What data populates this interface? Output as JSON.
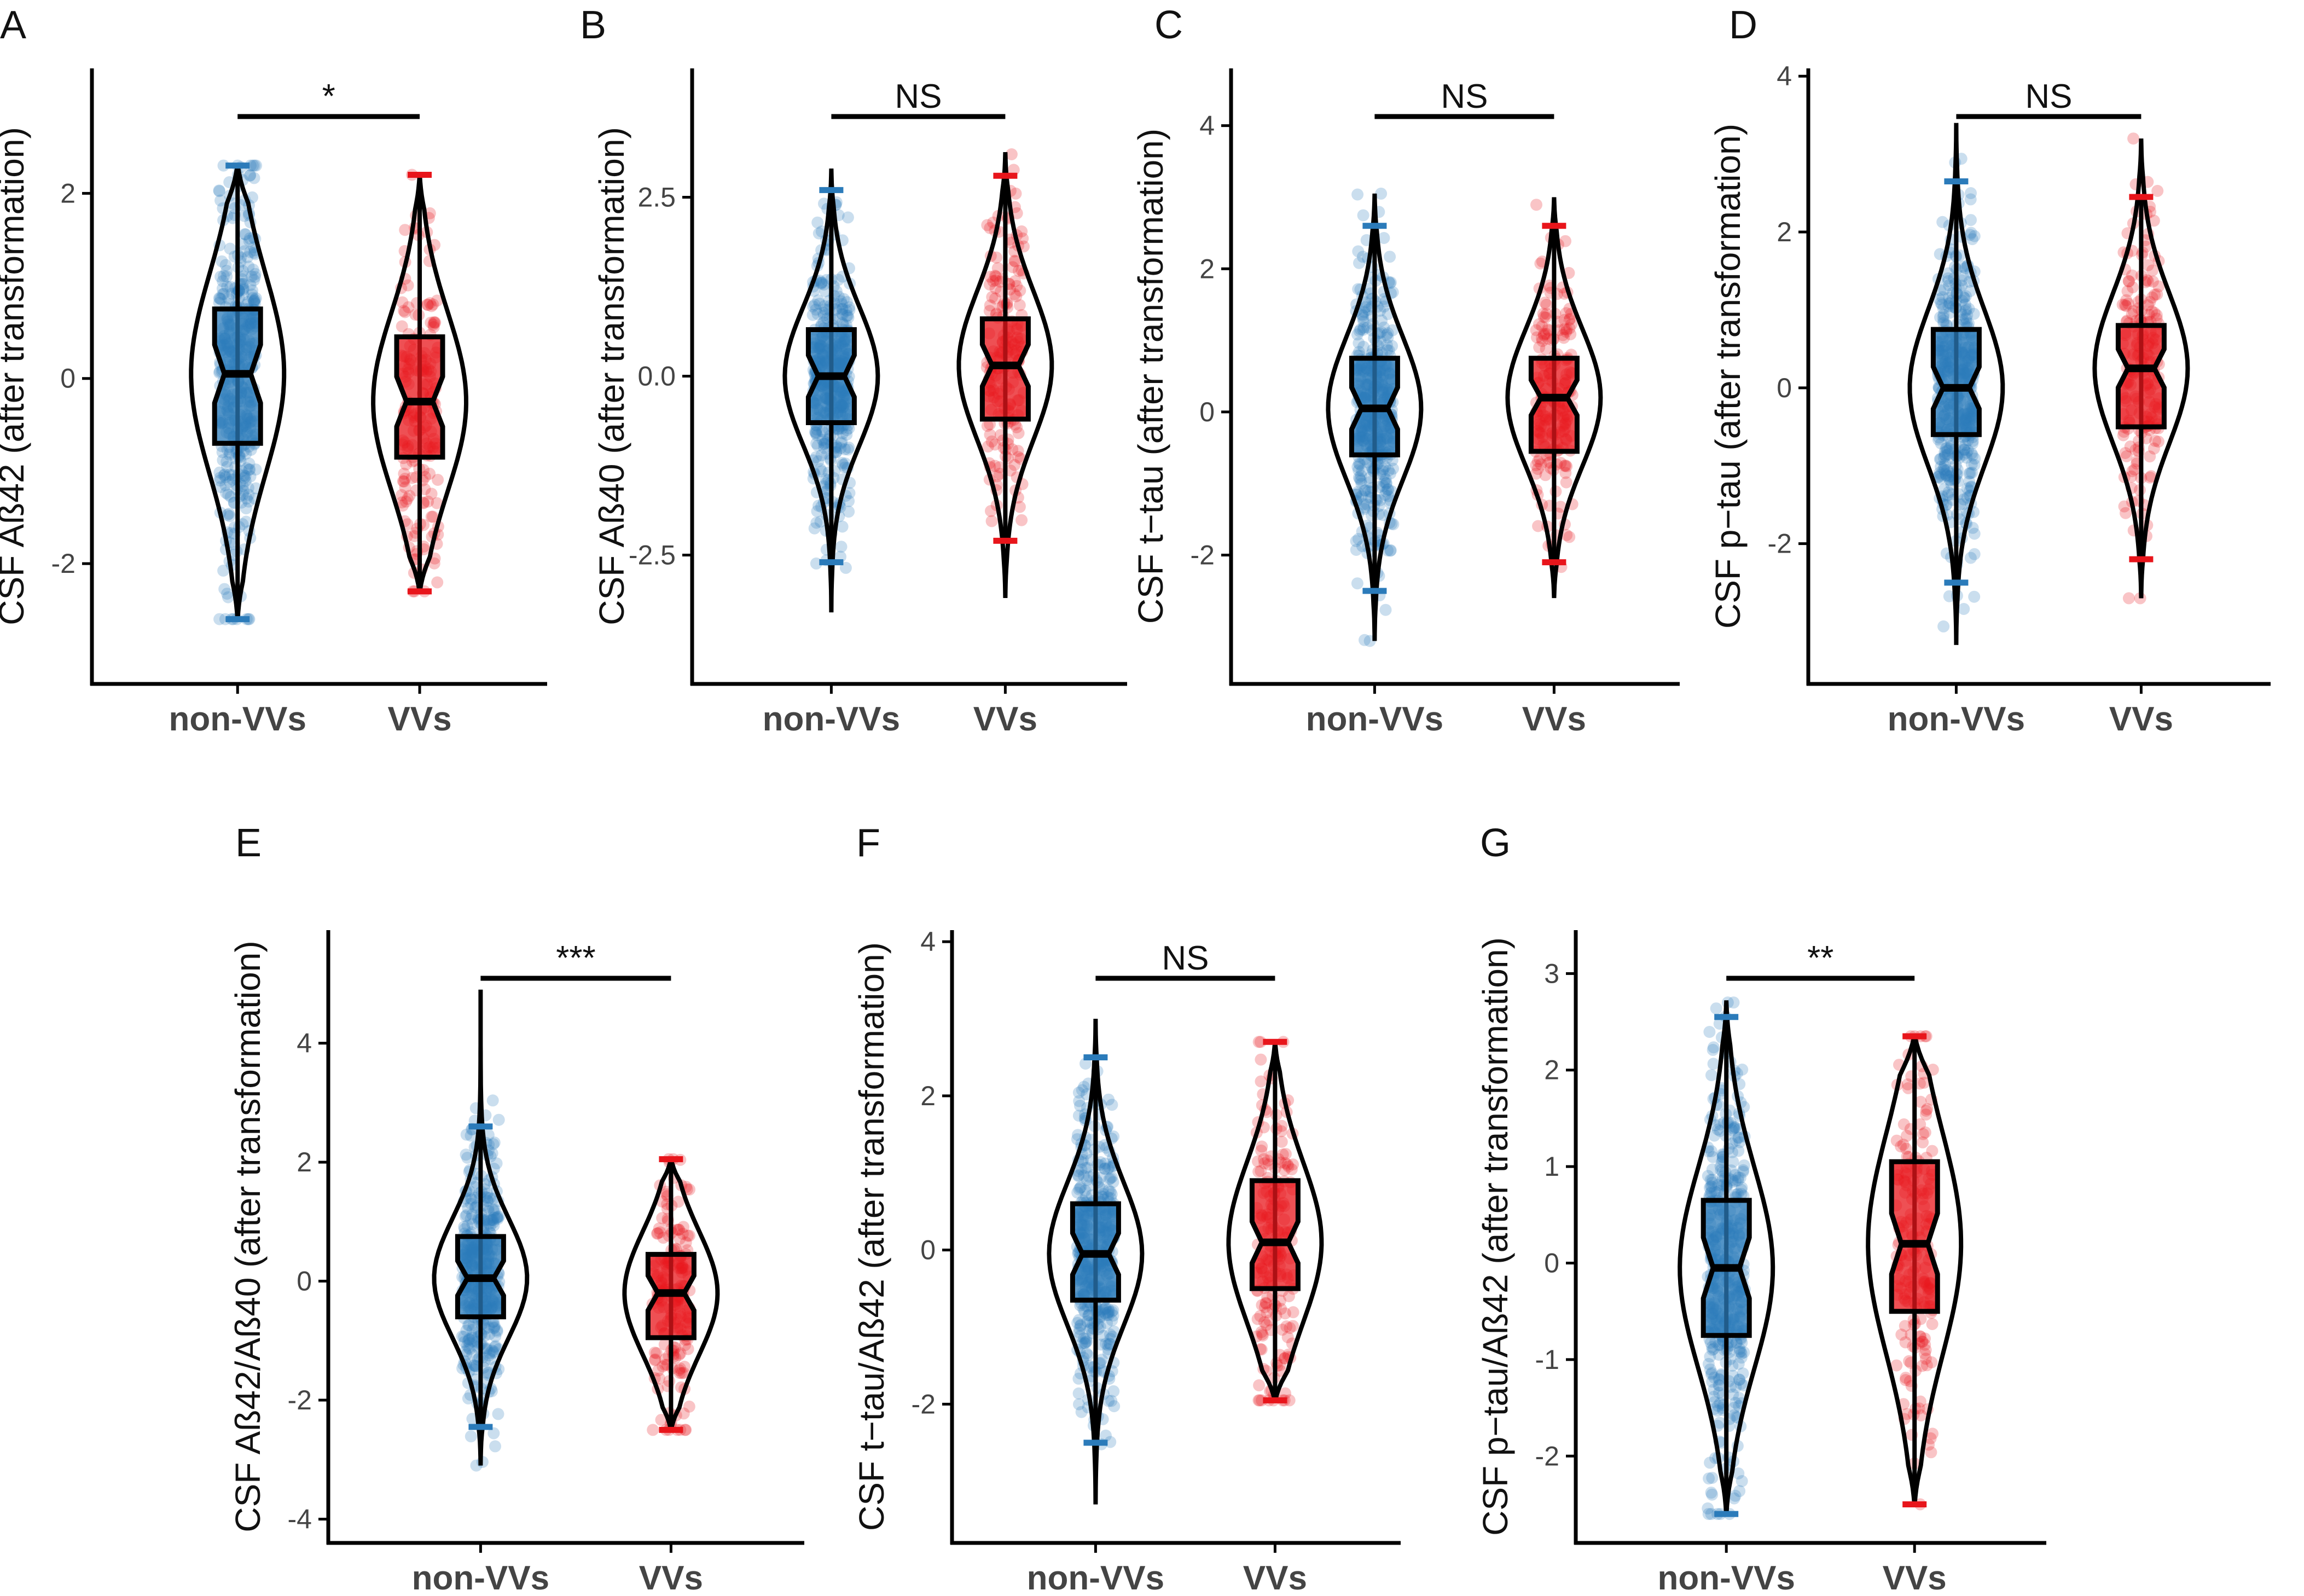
{
  "figure": {
    "categories": [
      "non-VVs",
      "VVs"
    ],
    "colors": {
      "nonVVs": "#2b7bba",
      "VVs": "#e8151b",
      "ink": "#000000"
    },
    "panels": [
      {
        "label": "A",
        "ylabel": "CSF Aß42 (after transformation)",
        "ylim": [
          -3.3,
          3.35
        ],
        "yticks": [
          "2",
          "0",
          "-2"
        ],
        "signif": "*",
        "groups": [
          {
            "name": "non-VVs",
            "min": -2.6,
            "q1": -0.7,
            "median": 0.05,
            "q3": 0.75,
            "max": 2.3,
            "whisk_lo": -2.6,
            "whisk_hi": 2.3
          },
          {
            "name": "VVs",
            "min": -2.3,
            "q1": -0.85,
            "median": -0.25,
            "q3": 0.45,
            "max": 2.2,
            "whisk_lo": -2.3,
            "whisk_hi": 2.2
          }
        ]
      },
      {
        "label": "B",
        "ylabel": "CSF Aß40 (after transformation)",
        "ylim": [
          -4.3,
          4.3
        ],
        "yticks": [
          "2.5",
          "0.0",
          "-2.5"
        ],
        "signif": "NS",
        "groups": [
          {
            "name": "non-VVs",
            "min": -3.3,
            "q1": -0.65,
            "median": 0.0,
            "q3": 0.65,
            "max": 2.9,
            "whisk_lo": -2.6,
            "whisk_hi": 2.6
          },
          {
            "name": "VVs",
            "min": -3.1,
            "q1": -0.6,
            "median": 0.15,
            "q3": 0.8,
            "max": 3.1,
            "whisk_lo": -2.3,
            "whisk_hi": 2.8
          }
        ]
      },
      {
        "label": "C",
        "ylabel": "CSF t−tau (after transformation)",
        "ylim": [
          -3.8,
          4.8
        ],
        "yticks": [
          "4",
          "2",
          "0",
          "-2"
        ],
        "signif": "NS",
        "groups": [
          {
            "name": "non-VVs",
            "min": -3.2,
            "q1": -0.6,
            "median": 0.05,
            "q3": 0.75,
            "max": 3.05,
            "whisk_lo": -2.5,
            "whisk_hi": 2.6
          },
          {
            "name": "VVs",
            "min": -2.6,
            "q1": -0.55,
            "median": 0.2,
            "q3": 0.75,
            "max": 3.0,
            "whisk_lo": -2.1,
            "whisk_hi": 2.6
          }
        ]
      },
      {
        "label": "D",
        "ylabel": "CSF p−tau (after transformation)",
        "ylim": [
          -3.8,
          4.1
        ],
        "yticks": [
          "4",
          "2",
          "0",
          "-2"
        ],
        "signif": "NS",
        "groups": [
          {
            "name": "non-VVs",
            "min": -3.3,
            "q1": -0.6,
            "median": 0.0,
            "q3": 0.75,
            "max": 3.4,
            "whisk_lo": -2.5,
            "whisk_hi": 2.65
          },
          {
            "name": "VVs",
            "min": -2.7,
            "q1": -0.5,
            "median": 0.25,
            "q3": 0.8,
            "max": 3.2,
            "whisk_lo": -2.2,
            "whisk_hi": 2.45
          }
        ]
      },
      {
        "label": "E",
        "ylabel": "CSF Aß42/Aß40 (after transformation)",
        "ylim": [
          -4.4,
          5.9
        ],
        "yticks": [
          "4",
          "2",
          "0",
          "-2",
          "-4"
        ],
        "signif": "***",
        "groups": [
          {
            "name": "non-VVs",
            "min": -3.1,
            "q1": -0.6,
            "median": 0.05,
            "q3": 0.75,
            "max": 4.9,
            "whisk_lo": -2.45,
            "whisk_hi": 2.6
          },
          {
            "name": "VVs",
            "min": -2.5,
            "q1": -0.95,
            "median": -0.2,
            "q3": 0.45,
            "max": 2.05,
            "whisk_lo": -2.5,
            "whisk_hi": 2.05
          }
        ]
      },
      {
        "label": "F",
        "ylabel": "CSF t−tau/Aß42 (after transformation)",
        "ylim": [
          -3.8,
          4.15
        ],
        "yticks": [
          "4",
          "2",
          "0",
          "-2"
        ],
        "signif": "NS",
        "groups": [
          {
            "name": "non-VVs",
            "min": -3.3,
            "q1": -0.65,
            "median": -0.05,
            "q3": 0.6,
            "max": 3.0,
            "whisk_lo": -2.5,
            "whisk_hi": 2.5
          },
          {
            "name": "VVs",
            "min": -1.95,
            "q1": -0.5,
            "median": 0.1,
            "q3": 0.9,
            "max": 2.7,
            "whisk_lo": -1.95,
            "whisk_hi": 2.7
          }
        ]
      },
      {
        "label": "G",
        "ylabel": "CSF p−tau/Aß42 (after transformation)",
        "ylim": [
          -2.9,
          3.45
        ],
        "yticks": [
          "3",
          "2",
          "1",
          "0",
          "-1",
          "-2"
        ],
        "signif": "**",
        "groups": [
          {
            "name": "non-VVs",
            "min": -2.6,
            "q1": -0.75,
            "median": -0.05,
            "q3": 0.65,
            "max": 2.7,
            "whisk_lo": -2.6,
            "whisk_hi": 2.55
          },
          {
            "name": "VVs",
            "min": -2.5,
            "q1": -0.5,
            "median": 0.2,
            "q3": 1.05,
            "max": 2.35,
            "whisk_lo": -2.5,
            "whisk_hi": 2.35
          }
        ]
      }
    ]
  },
  "chart_data": [
    {
      "type": "violin+box",
      "panel": "A",
      "ylabel": "CSF Aß42 (after transformation)",
      "categories": [
        "non-VVs",
        "VVs"
      ],
      "significance": "*",
      "series": [
        {
          "name": "non-VVs",
          "q1": -0.7,
          "median": 0.05,
          "q3": 0.75,
          "whisker_low": -2.6,
          "whisker_high": 2.3
        },
        {
          "name": "VVs",
          "q1": -0.85,
          "median": -0.25,
          "q3": 0.45,
          "whisker_low": -2.3,
          "whisker_high": 2.2
        }
      ]
    },
    {
      "type": "violin+box",
      "panel": "B",
      "ylabel": "CSF Aß40 (after transformation)",
      "categories": [
        "non-VVs",
        "VVs"
      ],
      "significance": "NS",
      "series": [
        {
          "name": "non-VVs",
          "q1": -0.65,
          "median": 0.0,
          "q3": 0.65,
          "whisker_low": -2.6,
          "whisker_high": 2.6
        },
        {
          "name": "VVs",
          "q1": -0.6,
          "median": 0.15,
          "q3": 0.8,
          "whisker_low": -2.3,
          "whisker_high": 2.8
        }
      ]
    },
    {
      "type": "violin+box",
      "panel": "C",
      "ylabel": "CSF t−tau (after transformation)",
      "categories": [
        "non-VVs",
        "VVs"
      ],
      "significance": "NS",
      "series": [
        {
          "name": "non-VVs",
          "q1": -0.6,
          "median": 0.05,
          "q3": 0.75,
          "whisker_low": -2.5,
          "whisker_high": 2.6
        },
        {
          "name": "VVs",
          "q1": -0.55,
          "median": 0.2,
          "q3": 0.75,
          "whisker_low": -2.1,
          "whisker_high": 2.6
        }
      ]
    },
    {
      "type": "violin+box",
      "panel": "D",
      "ylabel": "CSF p−tau (after transformation)",
      "categories": [
        "non-VVs",
        "VVs"
      ],
      "significance": "NS",
      "series": [
        {
          "name": "non-VVs",
          "q1": -0.6,
          "median": 0.0,
          "q3": 0.75,
          "whisker_low": -2.5,
          "whisker_high": 2.65
        },
        {
          "name": "VVs",
          "q1": -0.5,
          "median": 0.25,
          "q3": 0.8,
          "whisker_low": -2.2,
          "whisker_high": 2.45
        }
      ]
    },
    {
      "type": "violin+box",
      "panel": "E",
      "ylabel": "CSF Aß42/Aß40 (after transformation)",
      "categories": [
        "non-VVs",
        "VVs"
      ],
      "significance": "***",
      "series": [
        {
          "name": "non-VVs",
          "q1": -0.6,
          "median": 0.05,
          "q3": 0.75,
          "whisker_low": -2.45,
          "whisker_high": 2.6
        },
        {
          "name": "VVs",
          "q1": -0.95,
          "median": -0.2,
          "q3": 0.45,
          "whisker_low": -2.5,
          "whisker_high": 2.05
        }
      ]
    },
    {
      "type": "violin+box",
      "panel": "F",
      "ylabel": "CSF t−tau/Aß42 (after transformation)",
      "categories": [
        "non-VVs",
        "VVs"
      ],
      "significance": "NS",
      "series": [
        {
          "name": "non-VVs",
          "q1": -0.65,
          "median": -0.05,
          "q3": 0.6,
          "whisker_low": -2.5,
          "whisker_high": 2.5
        },
        {
          "name": "VVs",
          "q1": -0.5,
          "median": 0.1,
          "q3": 0.9,
          "whisker_low": -1.95,
          "whisker_high": 2.7
        }
      ]
    },
    {
      "type": "violin+box",
      "panel": "G",
      "ylabel": "CSF p−tau/Aß42 (after transformation)",
      "categories": [
        "non-VVs",
        "VVs"
      ],
      "significance": "**",
      "series": [
        {
          "name": "non-VVs",
          "q1": -0.75,
          "median": -0.05,
          "q3": 0.65,
          "whisker_low": -2.6,
          "whisker_high": 2.55
        },
        {
          "name": "VVs",
          "q1": -0.5,
          "median": 0.2,
          "q3": 1.05,
          "whisker_low": -2.5,
          "whisker_high": 2.35
        }
      ]
    }
  ]
}
